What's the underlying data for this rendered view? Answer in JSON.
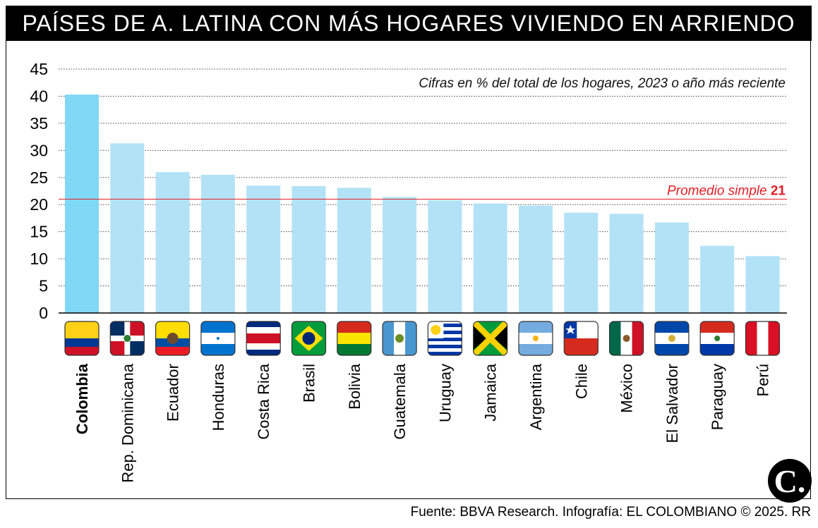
{
  "header": {
    "title": "PAÍSES DE A. LATINA CON MÁS HOGARES VIVIENDO EN ARRIENDO"
  },
  "chart_data": {
    "type": "bar",
    "title": "PAÍSES DE A. LATINA CON MÁS HOGARES VIVIENDO EN ARRIENDO",
    "subtitle": "Cifras en % del total de los hogares, 2023 o año más reciente",
    "categories": [
      "Colombia",
      "Rep. Dominicana",
      "Ecuador",
      "Honduras",
      "Costa Rica",
      "Brasil",
      "Bolivia",
      "Guatemala",
      "Uruguay",
      "Jamaica",
      "Argentina",
      "Chile",
      "México",
      "El Salvador",
      "Paraguay",
      "Perú"
    ],
    "values": [
      40.3,
      31.3,
      26.0,
      25.5,
      23.5,
      23.4,
      23.1,
      21.4,
      20.8,
      20.2,
      19.8,
      18.5,
      18.3,
      16.7,
      12.4,
      10.5
    ],
    "highlight": "Colombia",
    "ylim": [
      0,
      45
    ],
    "yticks": [
      0,
      5,
      10,
      15,
      20,
      25,
      30,
      35,
      40,
      45
    ],
    "grid": true,
    "reference_line": {
      "label": "Promedio simple",
      "value_label": "21",
      "value": 21
    },
    "colors": {
      "highlight": "#7fd8f6",
      "bar": "#b3e2f7",
      "reference": "#e31e24",
      "grid": "#444444",
      "axis": "#000000"
    },
    "flags": [
      "flag-colombia",
      "flag-dominican-republic",
      "flag-ecuador",
      "flag-honduras",
      "flag-costa-rica",
      "flag-brazil",
      "flag-bolivia",
      "flag-guatemala",
      "flag-uruguay",
      "flag-jamaica",
      "flag-argentina",
      "flag-chile",
      "flag-mexico",
      "flag-el-salvador",
      "flag-paraguay",
      "flag-peru"
    ]
  },
  "footer": {
    "source": "Fuente: BBVA Research. Infografía: EL COLOMBIANO © 2025. RR",
    "logo_text": "C."
  }
}
